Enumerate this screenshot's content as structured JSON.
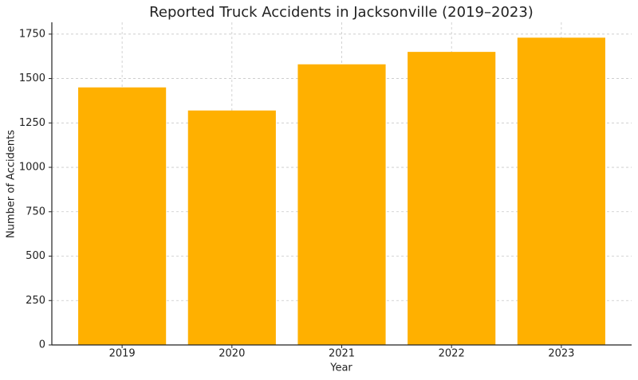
{
  "chart_data": {
    "type": "bar",
    "title": "Reported Truck Accidents in Jacksonville (2019–2023)",
    "x_label": "Year",
    "y_label": "Number of Accidents",
    "categories": [
      "2019",
      "2020",
      "2021",
      "2022",
      "2023"
    ],
    "values": [
      1450,
      1320,
      1580,
      1650,
      1730
    ],
    "color": "#ffb000",
    "ylim": [
      0,
      1816.5
    ],
    "yticks": [
      0,
      250,
      500,
      750,
      1000,
      1250,
      1500,
      1750
    ],
    "grid": true
  }
}
